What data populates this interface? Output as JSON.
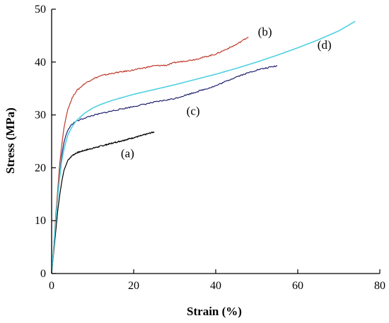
{
  "chart_data": {
    "type": "line",
    "title": "",
    "xlabel": "Strain (%)",
    "ylabel": "Stress (MPa)",
    "xlim": [
      0,
      80
    ],
    "ylim": [
      0,
      50
    ],
    "xticks": [
      0,
      20,
      40,
      60,
      80
    ],
    "yticks": [
      0,
      10,
      20,
      30,
      40,
      50
    ],
    "grid": false,
    "legend": "none",
    "series": [
      {
        "name": "(a)",
        "color": "#000000",
        "x": [
          0,
          0.5,
          1,
          1.5,
          2,
          2.5,
          3,
          4,
          5,
          6,
          8,
          10,
          12,
          15,
          18,
          20,
          22,
          25
        ],
        "y": [
          0,
          4,
          8,
          12,
          15,
          17.5,
          19.5,
          21.5,
          22.3,
          22.8,
          23.3,
          23.7,
          24.1,
          24.7,
          25.3,
          25.7,
          26.1,
          26.8
        ]
      },
      {
        "name": "(b)",
        "color": "#c0392b",
        "x": [
          0,
          0.5,
          1,
          1.5,
          2,
          2.5,
          3,
          3.5,
          4,
          5,
          6,
          8,
          10,
          12,
          15,
          20,
          25,
          28,
          30,
          35,
          40,
          45,
          48
        ],
        "y": [
          0,
          5,
          11,
          16,
          21,
          24.5,
          27.5,
          29.5,
          31.2,
          33.2,
          34.5,
          35.9,
          36.8,
          37.4,
          37.9,
          38.5,
          39.3,
          39.4,
          39.9,
          40.5,
          41.5,
          43.3,
          44.8
        ]
      },
      {
        "name": "(c)",
        "color": "#1f1f6e",
        "x": [
          0,
          0.5,
          1,
          1.5,
          2,
          2.5,
          3,
          3.5,
          4,
          5,
          6,
          8,
          10,
          15,
          20,
          25,
          30,
          35,
          40,
          45,
          50,
          55
        ],
        "y": [
          0,
          5,
          10,
          14.5,
          19,
          22.5,
          24.8,
          26.2,
          27.2,
          28.3,
          28.8,
          29.4,
          29.9,
          30.8,
          31.6,
          32.4,
          33.1,
          34.3,
          35.5,
          37.2,
          38.5,
          39.3
        ]
      },
      {
        "name": "(d)",
        "color": "#4fd1e0",
        "x": [
          0,
          0.5,
          1,
          1.5,
          2,
          2.5,
          3,
          3.5,
          4,
          5,
          6,
          8,
          10,
          12,
          15,
          20,
          25,
          30,
          35,
          40,
          45,
          50,
          55,
          60,
          65,
          70,
          74
        ],
        "y": [
          0,
          5,
          10,
          14.5,
          18.5,
          21.5,
          23.5,
          25,
          26.3,
          27.8,
          28.9,
          30.3,
          31.3,
          32,
          32.8,
          33.9,
          34.8,
          35.7,
          36.7,
          37.7,
          38.8,
          40,
          41.3,
          42.7,
          44.2,
          45.9,
          47.7
        ]
      }
    ],
    "annotations": [
      {
        "label": "(a)",
        "x": 18.5,
        "y": 22.0
      },
      {
        "label": "(b)",
        "x": 52.0,
        "y": 45.0
      },
      {
        "label": "(c)",
        "x": 34.5,
        "y": 30.0
      },
      {
        "label": "(d)",
        "x": 66.5,
        "y": 42.5
      }
    ]
  }
}
